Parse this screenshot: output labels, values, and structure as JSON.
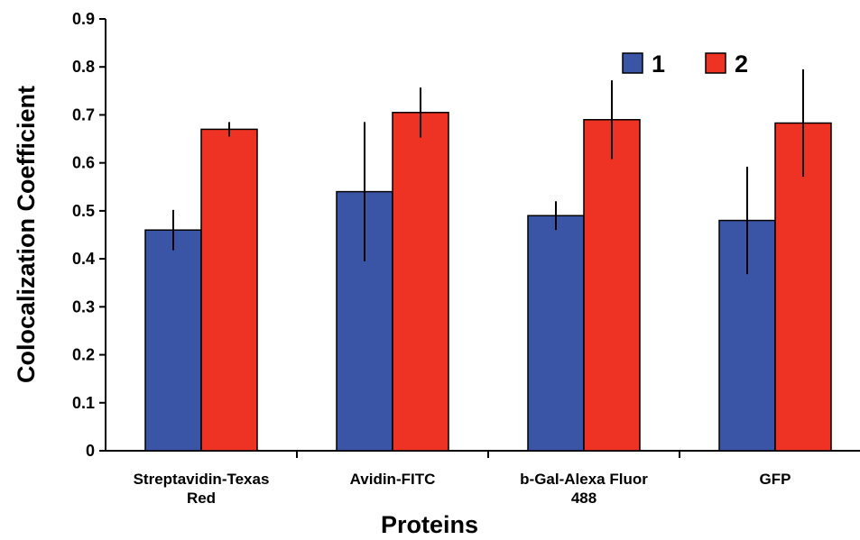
{
  "chart_data": {
    "type": "bar",
    "title": "",
    "xlabel": "Proteins",
    "ylabel": "Colocalization Coefficient",
    "ylim": [
      0,
      0.9
    ],
    "yticks": [
      "0",
      "0.1",
      "0.2",
      "0.3",
      "0.4",
      "0.5",
      "0.6",
      "0.7",
      "0.8",
      "0.9"
    ],
    "categories": [
      [
        "Streptavidin-Texas",
        "Red"
      ],
      [
        "Avidin-FITC"
      ],
      [
        "b-Gal-Alexa Fluor",
        "488"
      ],
      [
        "GFP"
      ]
    ],
    "series": [
      {
        "name": "1",
        "color": "#3a55a5",
        "values": [
          0.46,
          0.54,
          0.49,
          0.48
        ],
        "errors": [
          0.042,
          0.145,
          0.03,
          0.112
        ]
      },
      {
        "name": "2",
        "color": "#ee3224",
        "values": [
          0.67,
          0.705,
          0.69,
          0.683
        ],
        "errors": [
          0.015,
          0.052,
          0.082,
          0.112
        ]
      }
    ],
    "grid": false,
    "legend": "top-right"
  }
}
